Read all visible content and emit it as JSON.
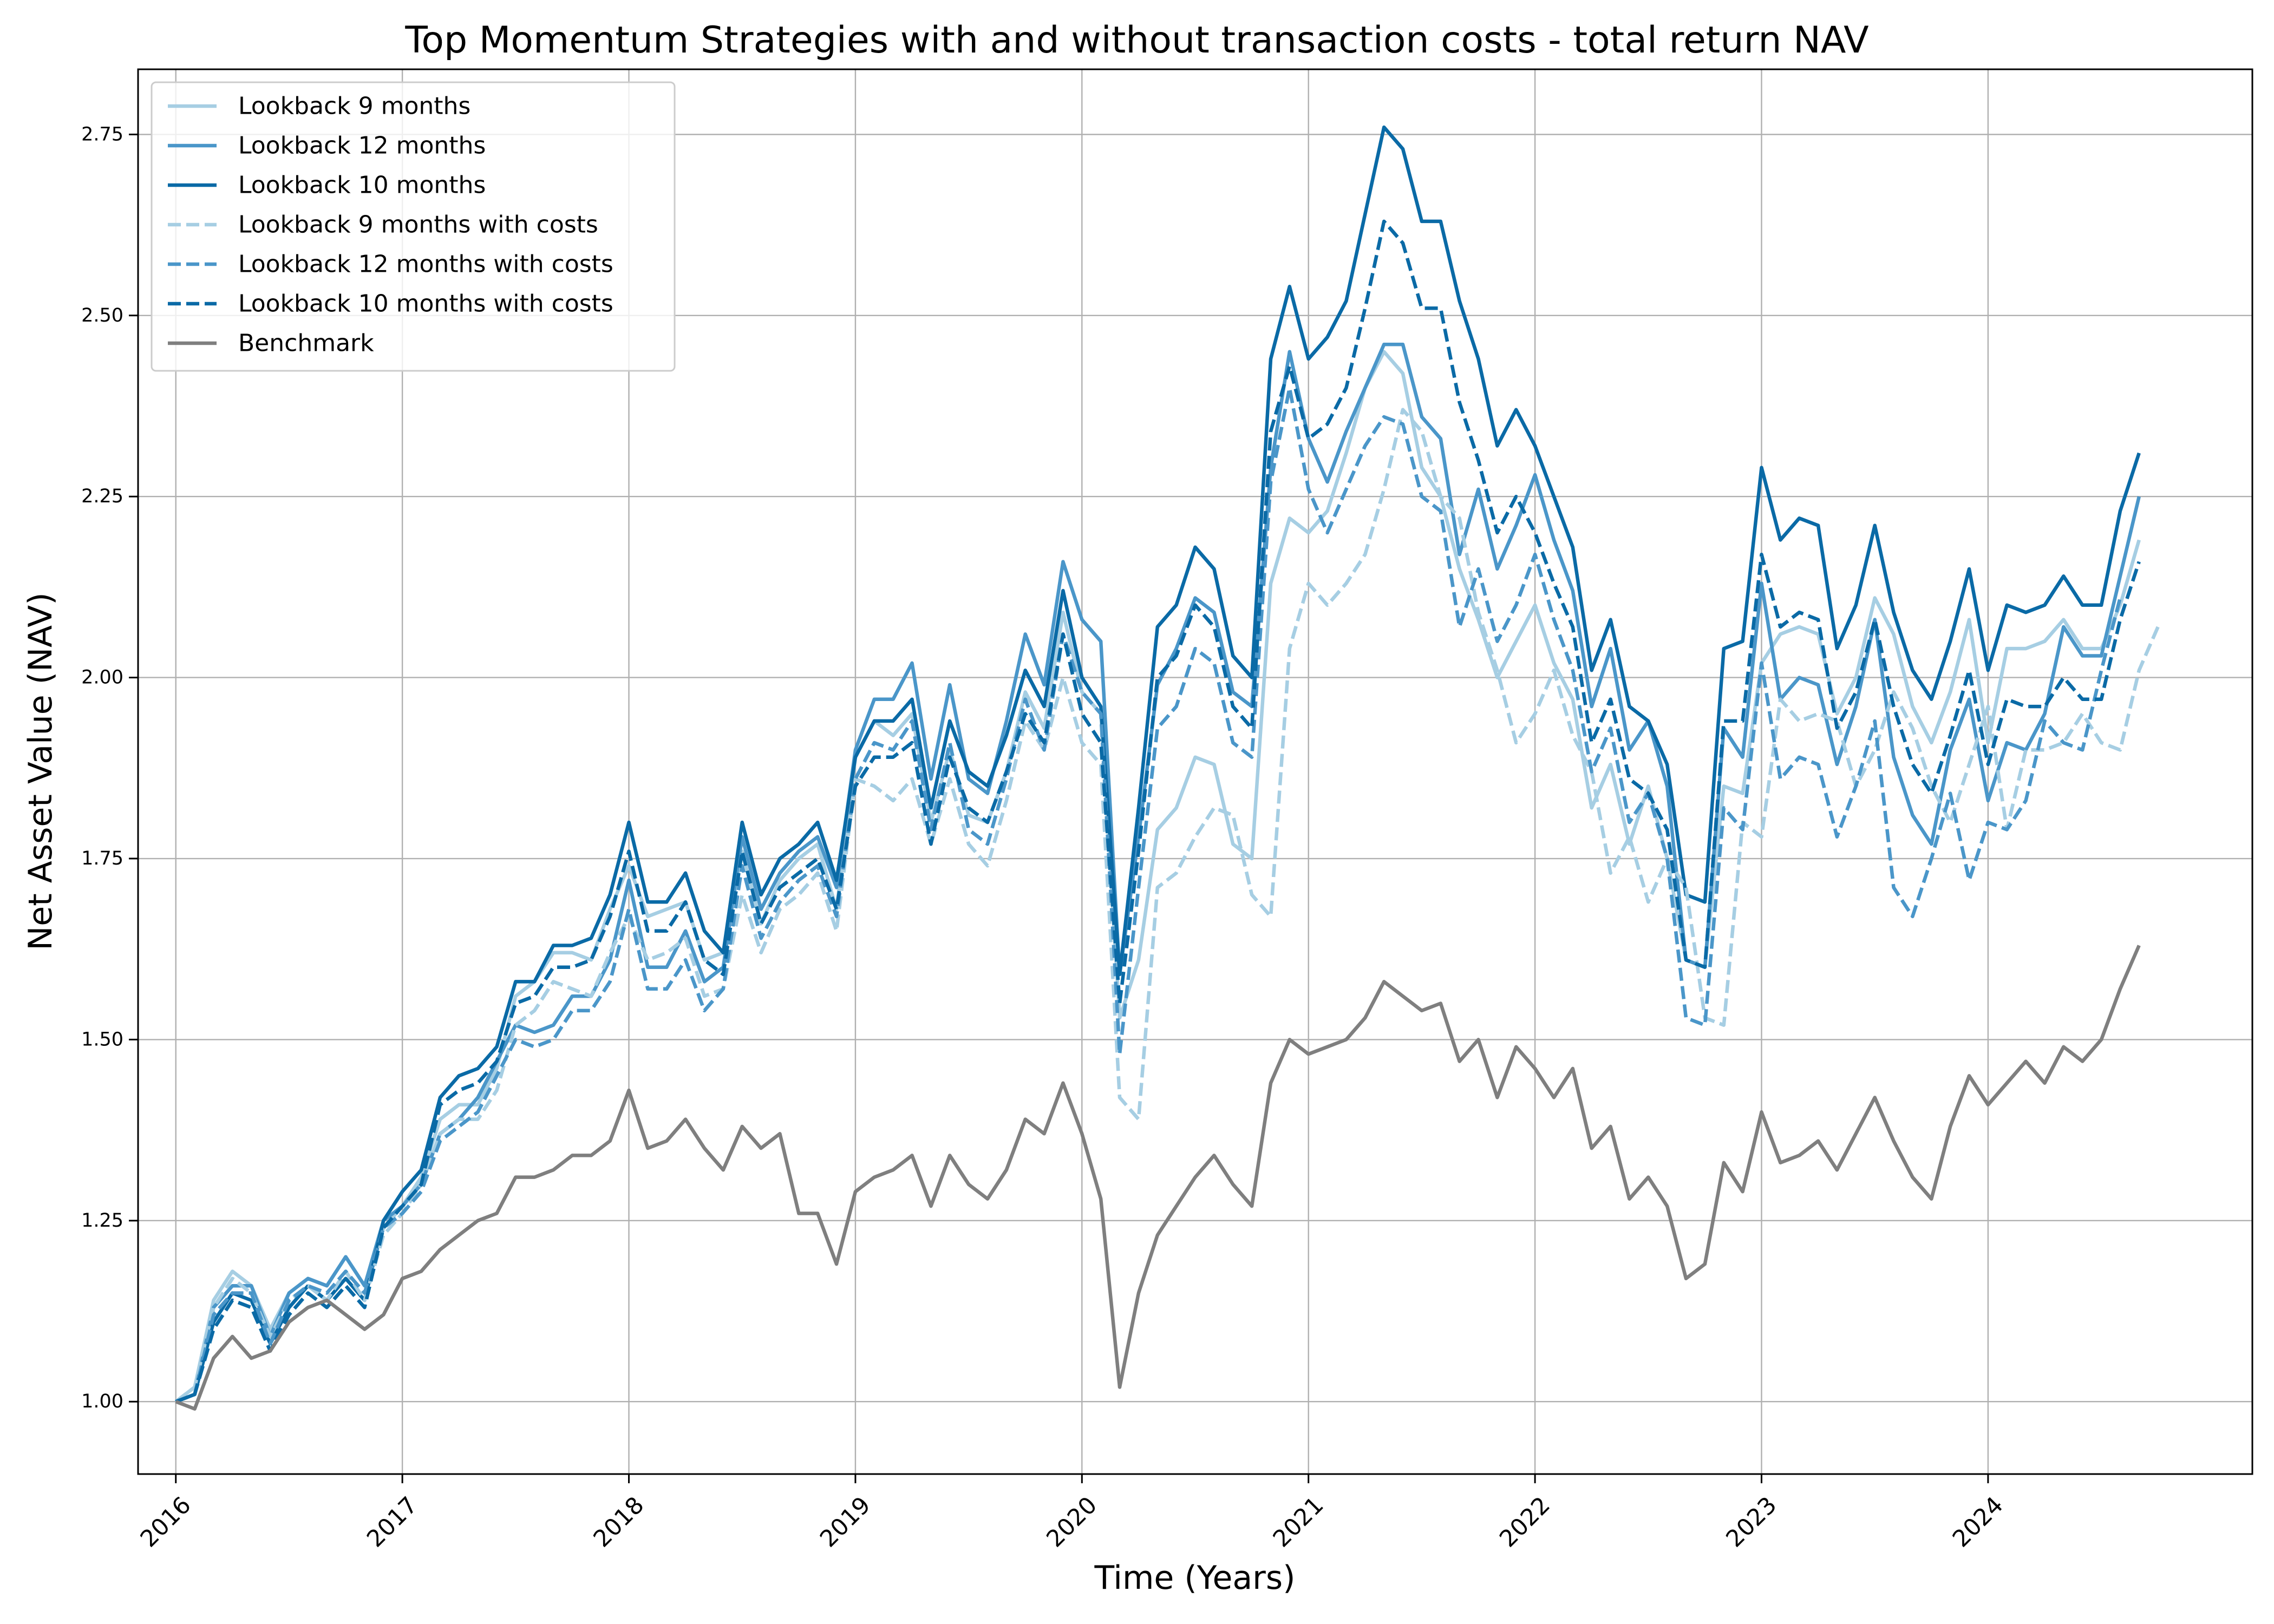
{
  "chart_data": {
    "type": "line",
    "title": "Top  Momentum Strategies with and without  transaction costs - total return NAV",
    "xlabel": "Time (Years)",
    "ylabel": "Net Asset Value (NAV)",
    "x_ticks": [
      "2016",
      "2017",
      "2018",
      "2019",
      "2020",
      "2021",
      "2022",
      "2023",
      "2024"
    ],
    "y_ticks": [
      "1.00",
      "1.25",
      "1.50",
      "1.75",
      "2.00",
      "2.25",
      "2.50",
      "2.75"
    ],
    "xlim": [
      "2015-11",
      "2025-03"
    ],
    "ylim": [
      0.9,
      2.84
    ],
    "grid": true,
    "legend_position": "upper-left",
    "x_start": "2016-01",
    "x_frequency": "monthly",
    "series": [
      {
        "name": "Lookback 9 months",
        "color": "#a6cee3",
        "dashed": false,
        "values": [
          1.0,
          1.02,
          1.14,
          1.18,
          1.16,
          1.1,
          1.15,
          1.17,
          1.16,
          1.2,
          1.16,
          1.24,
          1.27,
          1.31,
          1.39,
          1.41,
          1.41,
          1.46,
          1.56,
          1.58,
          1.62,
          1.62,
          1.61,
          1.68,
          1.74,
          1.67,
          1.68,
          1.69,
          1.61,
          1.62,
          1.76,
          1.66,
          1.72,
          1.75,
          1.77,
          1.68,
          1.89,
          1.94,
          1.92,
          1.95,
          1.8,
          1.9,
          1.81,
          1.8,
          1.87,
          1.98,
          1.93,
          2.09,
          1.98,
          1.95,
          1.53,
          1.61,
          1.79,
          1.82,
          1.89,
          1.88,
          1.77,
          1.75,
          2.13,
          2.22,
          2.2,
          2.23,
          2.31,
          2.4,
          2.45,
          2.42,
          2.29,
          2.25,
          2.15,
          2.08,
          2.0,
          2.05,
          2.1,
          2.02,
          1.97,
          1.82,
          1.88,
          1.77,
          1.85,
          1.75,
          1.61,
          1.6,
          1.85,
          1.84,
          2.02,
          2.06,
          2.07,
          2.06,
          1.95,
          2.0,
          2.11,
          2.06,
          1.96,
          1.91,
          1.98,
          2.08,
          1.91,
          2.04,
          2.04,
          2.05,
          2.08,
          2.04,
          2.04,
          2.1,
          2.19
        ]
      },
      {
        "name": "Lookback 12 months",
        "color": "#4a96c9",
        "dashed": false,
        "values": [
          1.0,
          1.01,
          1.13,
          1.16,
          1.16,
          1.09,
          1.15,
          1.17,
          1.16,
          1.2,
          1.16,
          1.25,
          1.27,
          1.3,
          1.37,
          1.39,
          1.42,
          1.47,
          1.52,
          1.51,
          1.52,
          1.56,
          1.56,
          1.61,
          1.72,
          1.6,
          1.6,
          1.65,
          1.58,
          1.6,
          1.78,
          1.68,
          1.73,
          1.76,
          1.78,
          1.71,
          1.9,
          1.97,
          1.97,
          2.02,
          1.86,
          1.99,
          1.86,
          1.84,
          1.94,
          2.06,
          1.99,
          2.16,
          2.08,
          2.05,
          1.59,
          1.78,
          1.99,
          2.04,
          2.11,
          2.09,
          1.98,
          1.96,
          2.29,
          2.45,
          2.33,
          2.27,
          2.34,
          2.4,
          2.46,
          2.46,
          2.36,
          2.33,
          2.17,
          2.26,
          2.15,
          2.21,
          2.28,
          2.19,
          2.12,
          1.96,
          2.04,
          1.9,
          1.94,
          1.85,
          1.61,
          1.6,
          1.93,
          1.89,
          2.13,
          1.97,
          2.0,
          1.99,
          1.88,
          1.96,
          2.08,
          1.89,
          1.81,
          1.77,
          1.9,
          1.97,
          1.83,
          1.91,
          1.9,
          1.95,
          2.07,
          2.03,
          2.03,
          2.14,
          2.25
        ]
      },
      {
        "name": "Lookback 10 months",
        "color": "#0a6aa6",
        "dashed": false,
        "values": [
          1.0,
          1.01,
          1.11,
          1.15,
          1.14,
          1.08,
          1.13,
          1.16,
          1.14,
          1.17,
          1.14,
          1.25,
          1.29,
          1.32,
          1.42,
          1.45,
          1.46,
          1.49,
          1.58,
          1.58,
          1.63,
          1.63,
          1.64,
          1.7,
          1.8,
          1.69,
          1.69,
          1.73,
          1.65,
          1.62,
          1.8,
          1.7,
          1.75,
          1.77,
          1.8,
          1.72,
          1.89,
          1.94,
          1.94,
          1.97,
          1.82,
          1.94,
          1.87,
          1.85,
          1.92,
          2.01,
          1.96,
          2.12,
          2.0,
          1.96,
          1.59,
          1.82,
          2.07,
          2.1,
          2.18,
          2.15,
          2.03,
          2.0,
          2.44,
          2.54,
          2.44,
          2.47,
          2.52,
          2.64,
          2.76,
          2.73,
          2.63,
          2.63,
          2.52,
          2.44,
          2.32,
          2.37,
          2.32,
          2.25,
          2.18,
          2.01,
          2.08,
          1.96,
          1.94,
          1.88,
          1.7,
          1.69,
          2.04,
          2.05,
          2.29,
          2.19,
          2.22,
          2.21,
          2.04,
          2.1,
          2.21,
          2.09,
          2.01,
          1.97,
          2.05,
          2.15,
          2.01,
          2.1,
          2.09,
          2.1,
          2.14,
          2.1,
          2.1,
          2.23,
          2.31
        ]
      },
      {
        "name": "Lookback 9 months with costs",
        "color": "#a6cee3",
        "dashed": true,
        "values": [
          1.0,
          1.02,
          1.13,
          1.17,
          1.15,
          1.09,
          1.14,
          1.16,
          1.14,
          1.18,
          1.14,
          1.23,
          1.26,
          1.3,
          1.37,
          1.39,
          1.39,
          1.43,
          1.52,
          1.54,
          1.58,
          1.57,
          1.56,
          1.62,
          1.67,
          1.61,
          1.62,
          1.64,
          1.56,
          1.57,
          1.7,
          1.62,
          1.68,
          1.7,
          1.73,
          1.65,
          1.86,
          1.85,
          1.83,
          1.86,
          1.77,
          1.86,
          1.77,
          1.74,
          1.83,
          1.94,
          1.9,
          2.0,
          1.91,
          1.88,
          1.42,
          1.39,
          1.71,
          1.73,
          1.78,
          1.82,
          1.81,
          1.7,
          1.67,
          2.04,
          2.13,
          2.1,
          2.13,
          2.17,
          2.26,
          2.37,
          2.34,
          2.25,
          2.22,
          2.09,
          2.01,
          1.91,
          1.95,
          2.01,
          1.92,
          1.87,
          1.73,
          1.78,
          1.69,
          1.75,
          1.71,
          1.53,
          1.52,
          1.8,
          1.78,
          1.97,
          1.94,
          1.95,
          1.94,
          1.85,
          1.9,
          1.98,
          1.93,
          1.85,
          1.8,
          1.88,
          1.96,
          1.79,
          1.9,
          1.9,
          1.91,
          1.95,
          1.91,
          1.9,
          2.01,
          2.07
        ]
      },
      {
        "name": "Lookback 12 months with costs",
        "color": "#4a96c9",
        "dashed": true,
        "values": [
          1.0,
          1.01,
          1.12,
          1.15,
          1.15,
          1.08,
          1.14,
          1.16,
          1.15,
          1.18,
          1.15,
          1.24,
          1.26,
          1.29,
          1.36,
          1.38,
          1.4,
          1.45,
          1.5,
          1.49,
          1.5,
          1.54,
          1.54,
          1.58,
          1.68,
          1.57,
          1.57,
          1.61,
          1.54,
          1.57,
          1.74,
          1.64,
          1.69,
          1.72,
          1.74,
          1.67,
          1.86,
          1.91,
          1.9,
          1.94,
          1.79,
          1.91,
          1.79,
          1.77,
          1.86,
          1.97,
          1.9,
          2.06,
          1.98,
          1.95,
          1.48,
          1.71,
          1.93,
          1.96,
          2.04,
          2.02,
          1.91,
          1.89,
          2.27,
          2.4,
          2.26,
          2.2,
          2.26,
          2.32,
          2.36,
          2.35,
          2.25,
          2.23,
          2.07,
          2.15,
          2.05,
          2.1,
          2.17,
          2.08,
          2.01,
          1.87,
          1.93,
          1.8,
          1.84,
          1.75,
          1.53,
          1.52,
          1.82,
          1.79,
          2.02,
          1.86,
          1.89,
          1.88,
          1.78,
          1.85,
          1.94,
          1.71,
          1.67,
          1.75,
          1.84,
          1.72,
          1.8,
          1.79,
          1.83,
          1.94,
          1.91,
          1.9,
          2.01,
          2.11
        ]
      },
      {
        "name": "Lookback 10 months with costs",
        "color": "#0a6aa6",
        "dashed": true,
        "values": [
          1.0,
          1.01,
          1.1,
          1.14,
          1.13,
          1.07,
          1.12,
          1.15,
          1.13,
          1.16,
          1.13,
          1.24,
          1.27,
          1.3,
          1.41,
          1.43,
          1.44,
          1.47,
          1.55,
          1.56,
          1.6,
          1.6,
          1.61,
          1.67,
          1.76,
          1.65,
          1.65,
          1.69,
          1.61,
          1.59,
          1.76,
          1.66,
          1.71,
          1.73,
          1.75,
          1.68,
          1.85,
          1.89,
          1.89,
          1.91,
          1.77,
          1.89,
          1.82,
          1.8,
          1.87,
          1.95,
          1.91,
          2.06,
          1.95,
          1.91,
          1.55,
          1.76,
          2.0,
          2.03,
          2.1,
          2.07,
          1.96,
          1.93,
          2.34,
          2.43,
          2.33,
          2.35,
          2.4,
          2.51,
          2.63,
          2.6,
          2.51,
          2.51,
          2.38,
          2.3,
          2.2,
          2.25,
          2.2,
          2.13,
          2.07,
          1.91,
          1.97,
          1.86,
          1.84,
          1.79,
          1.61,
          1.6,
          1.94,
          1.94,
          2.17,
          2.07,
          2.09,
          2.08,
          1.93,
          1.98,
          2.08,
          1.96,
          1.88,
          1.84,
          1.92,
          2.01,
          1.88,
          1.97,
          1.96,
          1.96,
          2.0,
          1.97,
          1.97,
          2.08,
          2.16
        ]
      },
      {
        "name": "Benchmark",
        "color": "#7f7f7f",
        "dashed": false,
        "values": [
          1.0,
          0.99,
          1.06,
          1.09,
          1.06,
          1.07,
          1.11,
          1.13,
          1.14,
          1.12,
          1.1,
          1.12,
          1.17,
          1.18,
          1.21,
          1.23,
          1.25,
          1.26,
          1.31,
          1.31,
          1.32,
          1.34,
          1.34,
          1.36,
          1.43,
          1.35,
          1.36,
          1.39,
          1.35,
          1.32,
          1.38,
          1.35,
          1.37,
          1.26,
          1.26,
          1.19,
          1.29,
          1.31,
          1.32,
          1.34,
          1.27,
          1.34,
          1.3,
          1.28,
          1.32,
          1.39,
          1.37,
          1.44,
          1.37,
          1.28,
          1.02,
          1.15,
          1.23,
          1.27,
          1.31,
          1.34,
          1.3,
          1.27,
          1.44,
          1.5,
          1.48,
          1.49,
          1.5,
          1.53,
          1.58,
          1.56,
          1.54,
          1.55,
          1.47,
          1.5,
          1.42,
          1.49,
          1.46,
          1.42,
          1.46,
          1.35,
          1.38,
          1.28,
          1.31,
          1.27,
          1.17,
          1.19,
          1.33,
          1.29,
          1.4,
          1.33,
          1.34,
          1.36,
          1.32,
          1.37,
          1.42,
          1.36,
          1.31,
          1.28,
          1.38,
          1.45,
          1.41,
          1.44,
          1.47,
          1.44,
          1.49,
          1.47,
          1.5,
          1.57,
          1.63
        ]
      }
    ]
  }
}
